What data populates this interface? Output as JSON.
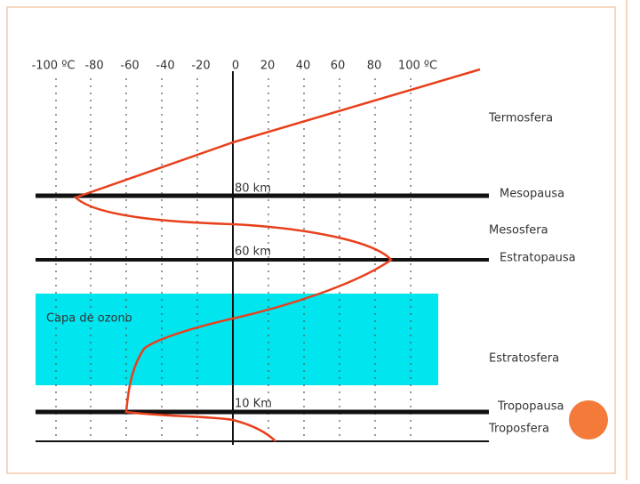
{
  "temperature_labels": [
    "-100 ºC",
    "-80",
    "-60",
    "-40",
    "-20",
    "0",
    "20",
    "40",
    "60",
    "80",
    "100 ºC"
  ],
  "altitude_labels": [
    "80 km",
    "60 km",
    "10 Km"
  ],
  "ozone_label": "Capa de ozono",
  "layer_labels": [
    "Termosfera",
    "Mesopausa",
    "Mesosfera",
    "Estratopausa",
    "Estratosfera",
    "Tropopausa",
    "Troposfera"
  ]
}
